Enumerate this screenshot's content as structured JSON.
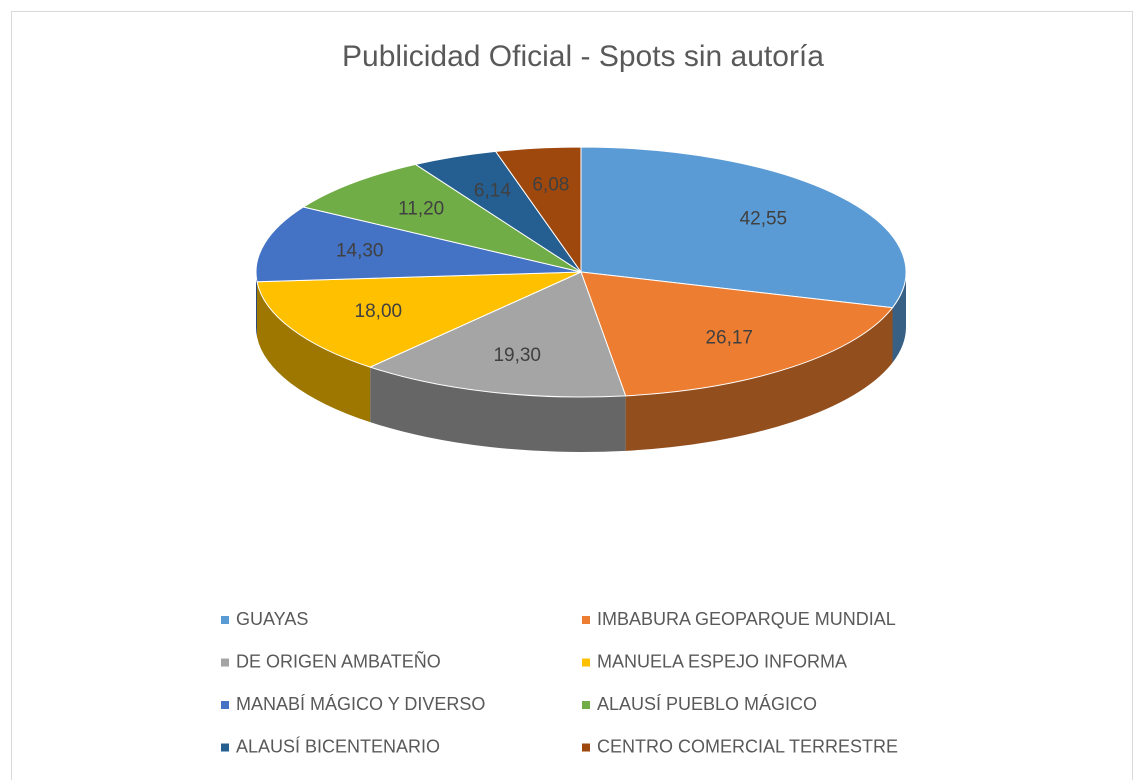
{
  "chart_data": {
    "type": "pie3d",
    "title": "Publicidad Oficial - Spots sin autoría",
    "categories": [
      "GUAYAS",
      "IMBABURA GEOPARQUE MUNDIAL",
      "DE ORIGEN AMBATEÑO",
      "MANUELA ESPEJO INFORMA",
      "MANABÍ MÁGICO Y DIVERSO",
      "ALAUSÍ PUEBLO MÁGICO",
      "ALAUSÍ BICENTENARIO",
      "CENTRO COMERCIAL TERRESTRE"
    ],
    "values": [
      42.55,
      26.17,
      19.3,
      18.0,
      14.3,
      11.2,
      6.14,
      6.08
    ],
    "value_labels": [
      "42,55",
      "26,17",
      "19,30",
      "18,00",
      "14,30",
      "11,20",
      "6,14",
      "6,08"
    ],
    "colors": [
      "#5b9bd5",
      "#ed7d31",
      "#a5a5a5",
      "#ffc000",
      "#4472c4",
      "#70ad47",
      "#255e91",
      "#9e480e"
    ],
    "legend": "bottom"
  }
}
